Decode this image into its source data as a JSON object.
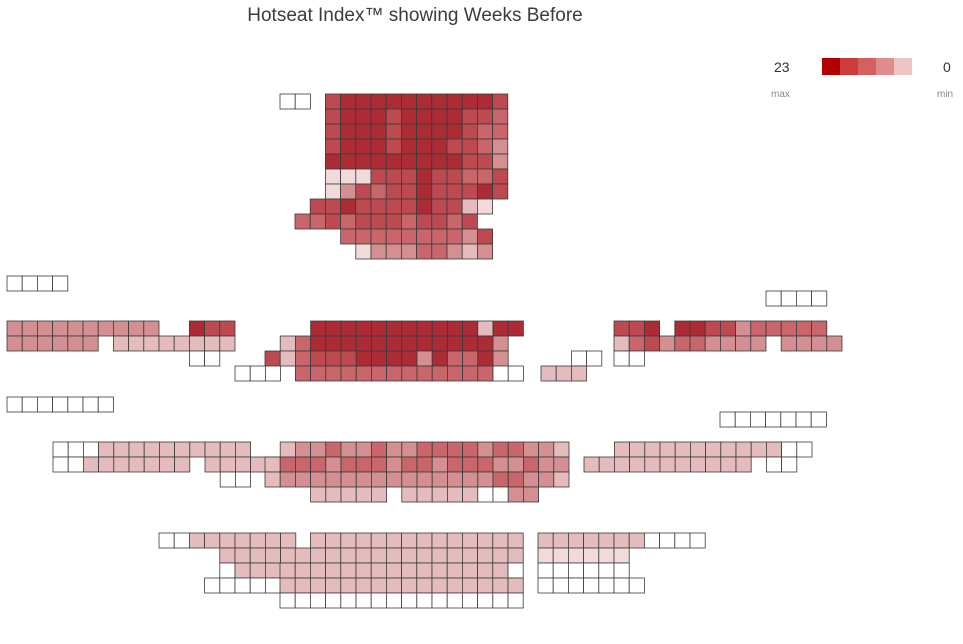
{
  "title": "Hotseat Index™ showing Weeks Before",
  "legend": {
    "max_value": "23",
    "min_value": "0",
    "max_label": "max",
    "min_label": "min",
    "colors": [
      "#b00000",
      "#cc3c3c",
      "#d46060",
      "#e08c8c",
      "#efc4c4"
    ]
  },
  "chart_data": {
    "type": "heatmap",
    "title": "Hotseat Index™ showing Weeks Before",
    "value_range": [
      0,
      23
    ],
    "cell_colors": {
      "d": "#ad2b34",
      "r": "#be4a51",
      "m": "#c8666b",
      "s": "#d48f92",
      "l": "#e4bcbe",
      "p": "#f1dada",
      "w": "#ffffff"
    },
    "blocks": [
      {
        "name": "stage-top-small",
        "rows": [
          "ww"
        ]
      },
      {
        "name": "upper-center",
        "rows": [
          "  rddddddddddr",
          "  rdddrddddrrm",
          "  rdddrddddrmm",
          "  rdddrdddrrms",
          "  dddddddddrrs",
          "  ppprrrdrrmmr",
          "  psrmrrdrrrdr",
          " rrdrrrrdrrlp",
          "mmrmrrrmrrmr",
          "   mmmmmmmmsr",
          "    psssmmsls"
        ]
      },
      {
        "name": "left-box-1",
        "rows": [
          "wwww"
        ]
      },
      {
        "name": "right-box-1",
        "rows": [
          "wwww"
        ]
      },
      {
        "name": "left-wing-1",
        "rows": [
          "ssssssssss  drr",
          "ssssss llllllll",
          "            ww"
        ]
      },
      {
        "name": "center-1",
        "rows": [
          "   dddddddddddldd",
          " lmdddddddddddds",
          "rlmrrrddddsdmmds",
          "  mmmmmmmmmmmmmww"
        ]
      },
      {
        "name": "center-1-right",
        "rows": [
          "  ww",
          "lll"
        ]
      },
      {
        "name": "center-1-left",
        "rows": [
          "www"
        ]
      },
      {
        "name": "right-wing-1",
        "rows": [
          "rrd ddrrsmmmmm",
          "lmrsmmssss ssss",
          "ww"
        ]
      },
      {
        "name": "left-box-2",
        "rows": [
          "wwwwwww"
        ]
      },
      {
        "name": "right-box-2",
        "rows": [
          "wwwwwww"
        ]
      },
      {
        "name": "left-wing-2",
        "rows": [
          "wwwllllllllll",
          "wwlllllll lllll",
          "           ww"
        ]
      },
      {
        "name": "center-2",
        "rows": [
          " lssmssmssmmmmsmmssl",
          "lmmmsmmmsmmsmmmssmss",
          "lssssssssssssssmmssl",
          "   lllll lllllwwss"
        ]
      },
      {
        "name": "right-wing-2",
        "rows": [
          "  lllllllllllww",
          "lllllllllll ww"
        ]
      },
      {
        "name": "lower-left",
        "rows": [
          "wwlllllll",
          "    lllll",
          "    wlll",
          "   wwwww"
        ]
      },
      {
        "name": "lower-center",
        "rows": [
          "  llllllllllllll",
          " lllllllllllllll",
          "lllllllllllllllw",
          "llllllllllllllll",
          "wwwwwwwwwwwwwwww"
        ]
      },
      {
        "name": "lower-right",
        "rows": [
          "lllllllwwww",
          "pppppp",
          "wwwwww",
          "wwwwwww"
        ]
      }
    ]
  }
}
